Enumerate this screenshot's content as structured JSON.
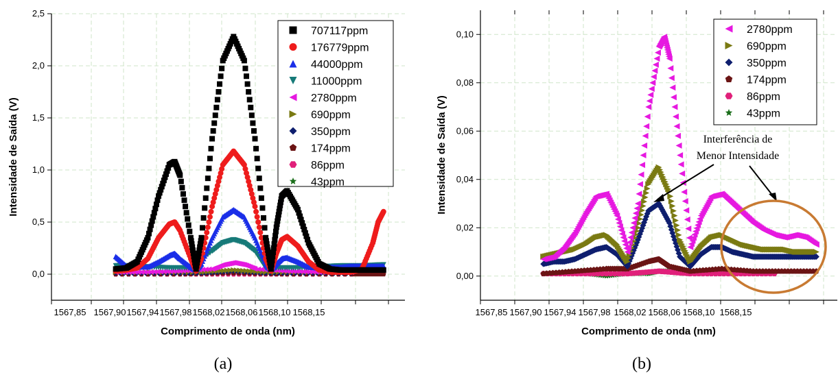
{
  "chart_data": [
    {
      "type": "scatter",
      "panel": "(a)",
      "xlabel": "Comprimento de onda (nm)",
      "ylabel": "Intensidade de Saída (V)",
      "xlim": [
        1567.83,
        1568.16
      ],
      "ylim": [
        -0.25,
        2.5
      ],
      "x_ticks": [
        "1567,85",
        "1567,90",
        "1567,94",
        "1567,98",
        "1568,02",
        "1568,06",
        "1568,10",
        "1568,15"
      ],
      "y_ticks": [
        "0,0",
        "0,5",
        "1,0",
        "1,5",
        "2,0",
        "2,5"
      ],
      "grid": true,
      "legend": "top-right",
      "series": [
        {
          "name": "707117ppm",
          "color": "#000000",
          "marker": "square",
          "x": [
            1567.89,
            1567.9,
            1567.91,
            1567.92,
            1567.93,
            1567.94,
            1567.945,
            1567.95,
            1567.96,
            1567.965,
            1567.97,
            1567.98,
            1567.99,
            1568.0,
            1568.01,
            1568.02,
            1568.03,
            1568.035,
            1568.04,
            1568.045,
            1568.05,
            1568.06,
            1568.07,
            1568.08,
            1568.09,
            1568.1,
            1568.11,
            1568.12,
            1568.13,
            1568.14
          ],
          "y": [
            0.05,
            0.06,
            0.12,
            0.35,
            0.75,
            1.05,
            1.08,
            0.95,
            0.35,
            0.05,
            0.35,
            1.3,
            2.05,
            2.28,
            2.05,
            1.3,
            0.35,
            0.05,
            0.45,
            0.75,
            0.8,
            0.62,
            0.3,
            0.1,
            0.05,
            0.04,
            0.04,
            0.04,
            0.04,
            0.04
          ]
        },
        {
          "name": "176779ppm",
          "color": "#ee1c1c",
          "marker": "circle",
          "x": [
            1567.89,
            1567.9,
            1567.91,
            1567.92,
            1567.93,
            1567.94,
            1567.945,
            1567.95,
            1567.96,
            1567.965,
            1567.97,
            1567.98,
            1567.99,
            1568.0,
            1568.01,
            1568.02,
            1568.03,
            1568.035,
            1568.04,
            1568.045,
            1568.05,
            1568.06,
            1568.07,
            1568.08,
            1568.09,
            1568.1,
            1568.11,
            1568.12,
            1568.13,
            1568.135,
            1568.14
          ],
          "y": [
            0.03,
            0.04,
            0.06,
            0.15,
            0.35,
            0.48,
            0.5,
            0.42,
            0.15,
            0.03,
            0.15,
            0.65,
            1.05,
            1.18,
            1.05,
            0.65,
            0.15,
            0.03,
            0.2,
            0.33,
            0.36,
            0.27,
            0.12,
            0.04,
            0.02,
            0.02,
            0.02,
            0.05,
            0.3,
            0.5,
            0.6
          ]
        },
        {
          "name": "44000ppm",
          "color": "#1a2ee8",
          "marker": "triangle-up",
          "x": [
            1567.89,
            1567.9,
            1567.91,
            1567.92,
            1567.93,
            1567.94,
            1567.945,
            1567.95,
            1567.96,
            1567.965,
            1567.97,
            1567.98,
            1567.99,
            1568.0,
            1568.01,
            1568.02,
            1568.03,
            1568.035,
            1568.04,
            1568.045,
            1568.05,
            1568.06,
            1568.07,
            1568.08,
            1568.09,
            1568.1,
            1568.11,
            1568.12,
            1568.13,
            1568.14
          ],
          "y": [
            0.17,
            0.08,
            0.07,
            0.07,
            0.12,
            0.18,
            0.2,
            0.15,
            0.07,
            0.04,
            0.1,
            0.35,
            0.55,
            0.62,
            0.55,
            0.35,
            0.1,
            0.04,
            0.1,
            0.15,
            0.16,
            0.12,
            0.07,
            0.06,
            0.07,
            0.07,
            0.08,
            0.08,
            0.08,
            0.08
          ]
        },
        {
          "name": "11000ppm",
          "color": "#167a78",
          "marker": "triangle-down",
          "x": [
            1567.89,
            1567.9,
            1567.92,
            1567.94,
            1567.96,
            1567.98,
            1567.99,
            1568.0,
            1568.01,
            1568.02,
            1568.03,
            1568.04,
            1568.06,
            1568.08,
            1568.1,
            1568.12,
            1568.14
          ],
          "y": [
            0.08,
            0.08,
            0.07,
            0.06,
            0.06,
            0.22,
            0.3,
            0.33,
            0.3,
            0.22,
            0.06,
            0.06,
            0.06,
            0.07,
            0.08,
            0.08,
            0.09
          ]
        },
        {
          "name": "2780ppm",
          "color": "#e619e0",
          "marker": "triangle-left",
          "x": [
            1567.89,
            1567.92,
            1567.95,
            1567.98,
            1567.99,
            1568.0,
            1568.01,
            1568.02,
            1568.05,
            1568.08,
            1568.11
          ],
          "y": [
            0.02,
            0.02,
            0.03,
            0.05,
            0.09,
            0.11,
            0.09,
            0.05,
            0.03,
            0.02,
            0.02
          ]
        },
        {
          "name": "690ppm",
          "color": "#7a7a12",
          "marker": "triangle-right",
          "x": [
            1567.89,
            1567.93,
            1567.97,
            1568.0,
            1568.03,
            1568.07,
            1568.11
          ],
          "y": [
            0.02,
            0.02,
            0.02,
            0.04,
            0.02,
            0.02,
            0.02
          ]
        },
        {
          "name": "350ppm",
          "color": "#0e1e6e",
          "marker": "diamond",
          "x": [
            1567.89,
            1567.93,
            1567.97,
            1568.0,
            1568.03,
            1568.07,
            1568.11
          ],
          "y": [
            0.01,
            0.01,
            0.01,
            0.03,
            0.01,
            0.01,
            0.01
          ]
        },
        {
          "name": "174ppm",
          "color": "#6b1414",
          "marker": "pentagon",
          "x": [
            1567.89,
            1567.95,
            1568.0,
            1568.05,
            1568.11,
            1568.14
          ],
          "y": [
            0.0,
            0.0,
            0.01,
            0.0,
            0.0,
            0.0
          ]
        },
        {
          "name": "86ppm",
          "color": "#e0207a",
          "marker": "hexagon",
          "x": [
            1567.89,
            1567.95,
            1568.0,
            1568.05,
            1568.11
          ],
          "y": [
            0.0,
            0.0,
            0.0,
            0.0,
            0.0
          ]
        },
        {
          "name": "43ppm",
          "color": "#1a6e1a",
          "marker": "star",
          "x": [
            1567.89,
            1567.95,
            1568.0,
            1568.05,
            1568.11
          ],
          "y": [
            0.0,
            0.0,
            0.0,
            0.0,
            0.0
          ]
        }
      ]
    },
    {
      "type": "scatter",
      "panel": "(b)",
      "xlabel": "Comprimento de onda (nm)",
      "ylabel": "Intensidade de Saída (V)",
      "xlim": [
        1567.83,
        1568.17
      ],
      "ylim": [
        -0.01,
        0.11
      ],
      "x_ticks": [
        "1567,85",
        "1567,90",
        "1567,94",
        "1567,98",
        "1568,02",
        "1568,06",
        "1568,10",
        "1568,15"
      ],
      "y_ticks": [
        "0,00",
        "0,02",
        "0,04",
        "0,06",
        "0,08",
        "0,10"
      ],
      "grid": true,
      "legend": "top-right",
      "annotations": [
        "Interferência de",
        "Menor Intensidade"
      ],
      "series": [
        {
          "name": "2780ppm",
          "color": "#e619e0",
          "marker": "triangle-left",
          "x": [
            1567.89,
            1567.9,
            1567.91,
            1567.92,
            1567.93,
            1567.94,
            1567.95,
            1567.96,
            1567.97,
            1567.98,
            1567.99,
            1568.0,
            1568.005,
            1568.01,
            1568.02,
            1568.03,
            1568.04,
            1568.05,
            1568.06,
            1568.07,
            1568.08,
            1568.09,
            1568.1,
            1568.11,
            1568.12,
            1568.13,
            1568.14,
            1568.15
          ],
          "y": [
            0.007,
            0.008,
            0.012,
            0.018,
            0.026,
            0.033,
            0.034,
            0.025,
            0.01,
            0.03,
            0.07,
            0.095,
            0.099,
            0.09,
            0.05,
            0.012,
            0.025,
            0.033,
            0.034,
            0.03,
            0.026,
            0.022,
            0.019,
            0.017,
            0.016,
            0.017,
            0.016,
            0.013
          ]
        },
        {
          "name": "690ppm",
          "color": "#7a7a12",
          "marker": "triangle-right",
          "x": [
            1567.89,
            1567.9,
            1567.91,
            1567.92,
            1567.93,
            1567.94,
            1567.95,
            1567.96,
            1567.97,
            1567.98,
            1567.99,
            1568.0,
            1568.01,
            1568.02,
            1568.03,
            1568.04,
            1568.05,
            1568.06,
            1568.07,
            1568.08,
            1568.09,
            1568.1,
            1568.11,
            1568.12,
            1568.13,
            1568.14,
            1568.15
          ],
          "y": [
            0.008,
            0.009,
            0.01,
            0.011,
            0.013,
            0.016,
            0.017,
            0.013,
            0.006,
            0.02,
            0.038,
            0.045,
            0.035,
            0.015,
            0.006,
            0.012,
            0.016,
            0.017,
            0.015,
            0.013,
            0.012,
            0.011,
            0.011,
            0.011,
            0.01,
            0.01,
            0.01
          ]
        },
        {
          "name": "350ppm",
          "color": "#0e1e6e",
          "marker": "diamond",
          "x": [
            1567.89,
            1567.9,
            1567.91,
            1567.92,
            1567.93,
            1567.94,
            1567.95,
            1567.96,
            1567.97,
            1567.98,
            1567.99,
            1568.0,
            1568.01,
            1568.02,
            1568.03,
            1568.04,
            1568.05,
            1568.06,
            1568.07,
            1568.08,
            1568.09,
            1568.1,
            1568.11,
            1568.12,
            1568.13,
            1568.14,
            1568.15
          ],
          "y": [
            0.005,
            0.006,
            0.006,
            0.007,
            0.009,
            0.011,
            0.012,
            0.009,
            0.004,
            0.015,
            0.027,
            0.03,
            0.022,
            0.008,
            0.004,
            0.009,
            0.012,
            0.012,
            0.01,
            0.009,
            0.008,
            0.008,
            0.008,
            0.008,
            0.008,
            0.008,
            0.008
          ]
        },
        {
          "name": "174ppm",
          "color": "#6b1414",
          "marker": "pentagon",
          "x": [
            1567.89,
            1567.92,
            1567.95,
            1567.97,
            1567.99,
            1568.0,
            1568.01,
            1568.03,
            1568.06,
            1568.09,
            1568.12,
            1568.15
          ],
          "y": [
            0.001,
            0.002,
            0.003,
            0.003,
            0.006,
            0.007,
            0.004,
            0.002,
            0.003,
            0.002,
            0.002,
            0.002
          ]
        },
        {
          "name": "86ppm",
          "color": "#e0207a",
          "marker": "hexagon",
          "x": [
            1567.89,
            1567.93,
            1567.97,
            1568.0,
            1568.03,
            1568.07,
            1568.11
          ],
          "y": [
            0.001,
            0.001,
            0.001,
            0.002,
            0.001,
            0.001,
            0.001
          ]
        },
        {
          "name": "43ppm",
          "color": "#1a6e1a",
          "marker": "star",
          "x": [
            1567.89,
            1567.91,
            1567.93,
            1567.95,
            1567.97,
            1567.99,
            1568.0,
            1568.01,
            1568.03,
            1568.05,
            1568.07,
            1568.09,
            1568.11
          ],
          "y": [
            0.001,
            0.001,
            0.001,
            0.0,
            0.001,
            0.001,
            0.002,
            0.002,
            0.001,
            0.001,
            0.001,
            0.001,
            0.001
          ]
        }
      ]
    }
  ],
  "captions": [
    "(a)",
    "(b)"
  ],
  "colors": {
    "highlight_ellipse": "#c87a32",
    "grid": "#cfe6c9"
  }
}
